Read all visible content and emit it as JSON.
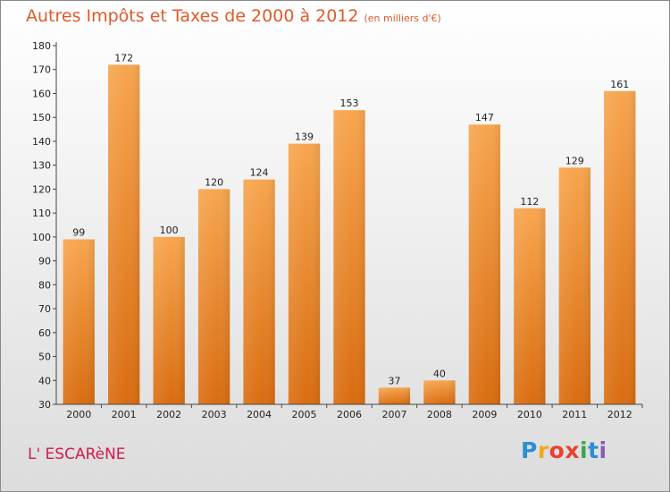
{
  "title": "Autres Impôts et Taxes de 2000 à 2012",
  "subtitle": "(en milliers d'€)",
  "place": "L' ESCARèNE",
  "logo": {
    "letters": [
      "P",
      "r",
      "o",
      "x",
      "i",
      "t",
      "i"
    ],
    "colors": [
      "#2b8fd6",
      "#f2a81d",
      "#e8432f",
      "#e8432f",
      "#3aa84a",
      "#2b8fd6",
      "#8a5bb6"
    ]
  },
  "chart_data": {
    "type": "bar",
    "categories": [
      "2000",
      "2001",
      "2002",
      "2003",
      "2004",
      "2005",
      "2006",
      "2007",
      "2008",
      "2009",
      "2010",
      "2011",
      "2012"
    ],
    "values": [
      99,
      172,
      100,
      120,
      124,
      139,
      153,
      37,
      40,
      147,
      112,
      129,
      161
    ],
    "ylim": [
      30,
      180
    ],
    "yticks": [
      30,
      40,
      50,
      60,
      70,
      80,
      90,
      100,
      110,
      120,
      130,
      140,
      150,
      160,
      170,
      180
    ],
    "grid": false,
    "bar_color": "#f0902c",
    "data_labels": true
  }
}
